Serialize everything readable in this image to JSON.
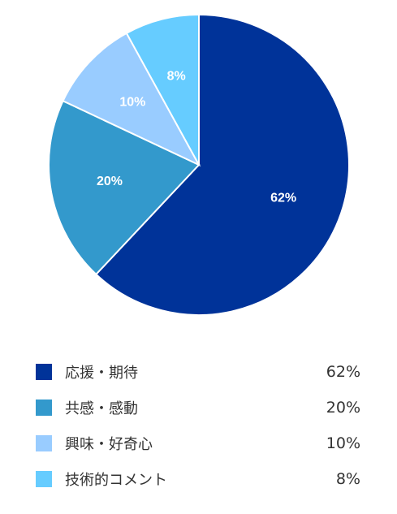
{
  "chart_data": {
    "type": "pie",
    "categories": [
      "応援・期待",
      "共感・感動",
      "興味・好奇心",
      "技術的コメント"
    ],
    "values": [
      62,
      20,
      10,
      8
    ],
    "value_labels": [
      "62%",
      "20%",
      "10%",
      "8%"
    ],
    "colors": [
      "#003399",
      "#3399cc",
      "#99ccff",
      "#66ccff"
    ],
    "start_angle": "12 o'clock, clockwise",
    "legend_placement": "bottom"
  }
}
